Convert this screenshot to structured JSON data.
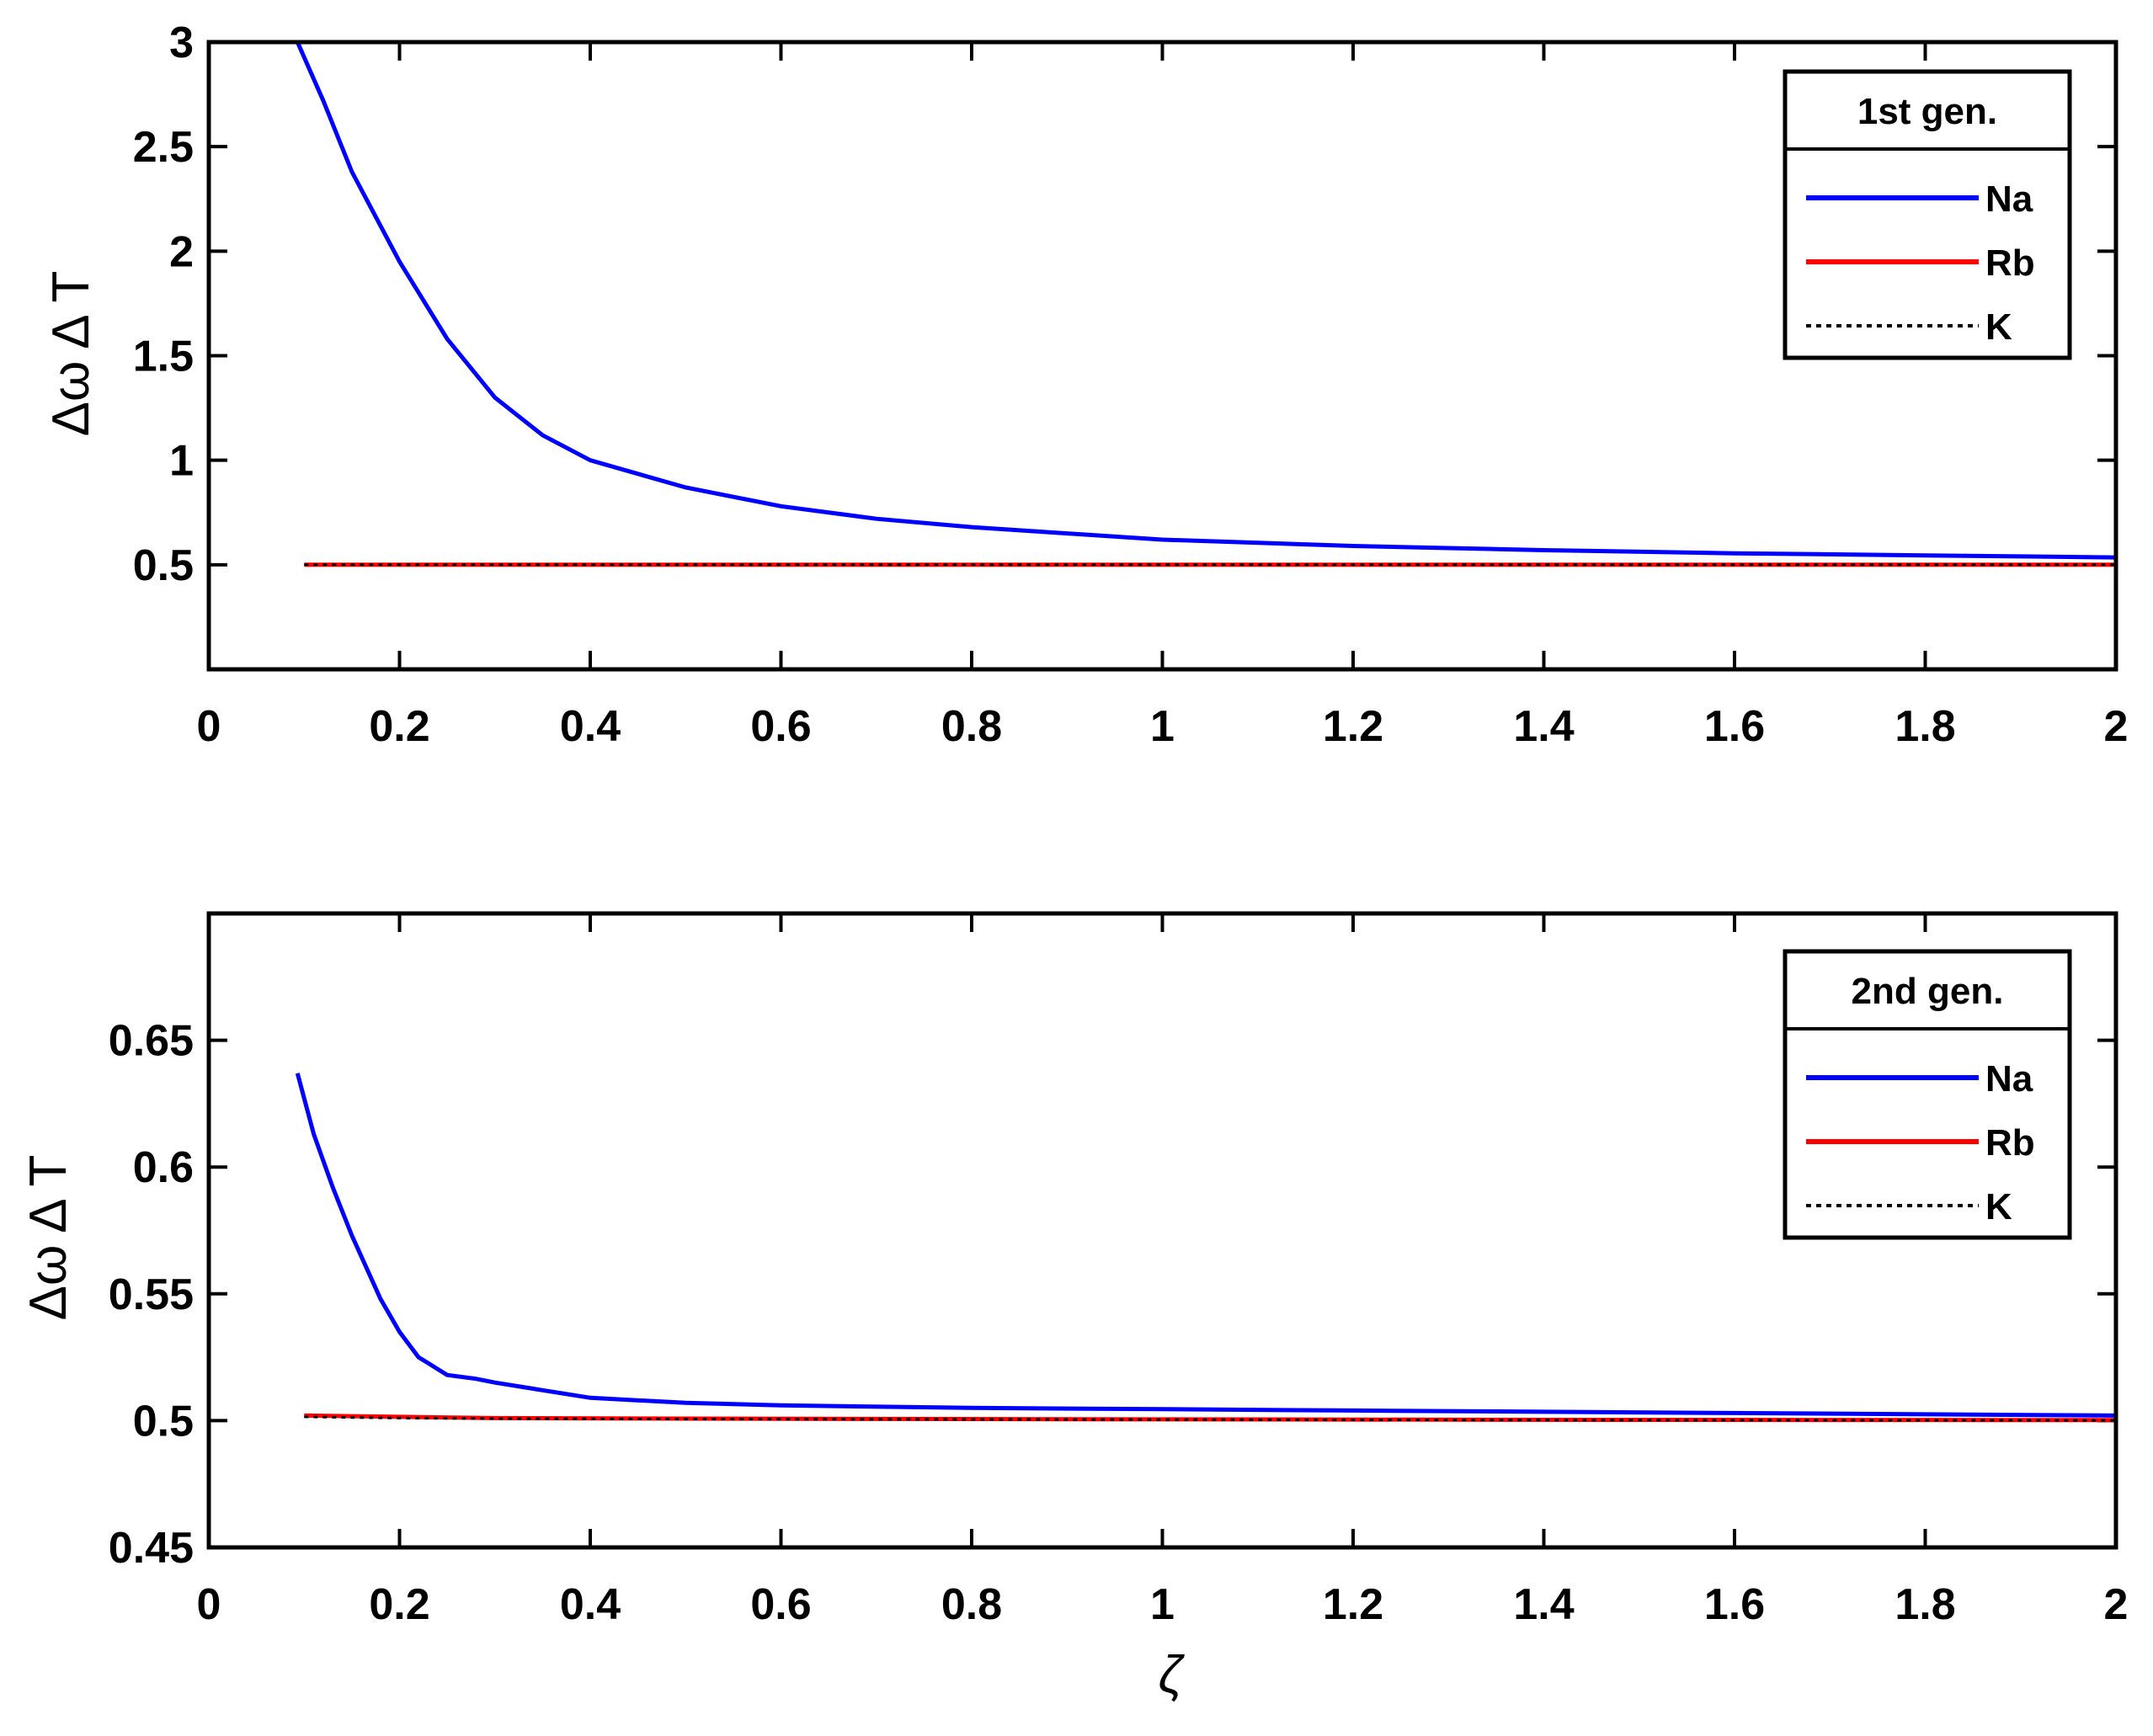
{
  "chart_data": [
    {
      "type": "line",
      "title": "",
      "xlabel": "",
      "ylabel": "Δω Δ T",
      "xlim": [
        0,
        2
      ],
      "ylim": [
        0,
        3
      ],
      "x_ticks": [
        0,
        0.2,
        0.4,
        0.6,
        0.8,
        1,
        1.2,
        1.4,
        1.6,
        1.8,
        2
      ],
      "x_tick_labels": [
        "0",
        "0.2",
        "0.4",
        "0.6",
        "0.8",
        "1",
        "1.2",
        "1.4",
        "1.6",
        "1.8",
        "2"
      ],
      "y_ticks": [
        0.5,
        1,
        1.5,
        2,
        2.5,
        3
      ],
      "y_tick_labels": [
        "0.5",
        "1",
        "1.5",
        "2",
        "2.5",
        "3"
      ],
      "legend": {
        "title": "1st gen.",
        "position": "top-right"
      },
      "series": [
        {
          "name": "Na",
          "color": "#0000ff",
          "style": "solid",
          "x": [
            0.093,
            0.12,
            0.15,
            0.2,
            0.25,
            0.3,
            0.35,
            0.4,
            0.5,
            0.6,
            0.7,
            0.8,
            0.9,
            1.0,
            1.2,
            1.4,
            1.6,
            1.8,
            2.0
          ],
          "y": [
            3.0,
            2.72,
            2.38,
            1.95,
            1.58,
            1.3,
            1.12,
            1.0,
            0.87,
            0.78,
            0.72,
            0.68,
            0.65,
            0.62,
            0.59,
            0.57,
            0.555,
            0.545,
            0.535
          ]
        },
        {
          "name": "Rb",
          "color": "#ff0000",
          "style": "solid",
          "x": [
            0.1,
            2.0
          ],
          "y": [
            0.5,
            0.5
          ]
        },
        {
          "name": "K",
          "color": "#000000",
          "style": "dotted",
          "x": [
            0.1,
            2.0
          ],
          "y": [
            0.5,
            0.5
          ]
        }
      ]
    },
    {
      "type": "line",
      "title": "",
      "xlabel": "ζ",
      "ylabel": "Δω Δ T",
      "xlim": [
        0,
        2
      ],
      "ylim": [
        0.45,
        0.7
      ],
      "x_ticks": [
        0,
        0.2,
        0.4,
        0.6,
        0.8,
        1,
        1.2,
        1.4,
        1.6,
        1.8,
        2
      ],
      "x_tick_labels": [
        "0",
        "0.2",
        "0.4",
        "0.6",
        "0.8",
        "1",
        "1.2",
        "1.4",
        "1.6",
        "1.8",
        "2"
      ],
      "y_ticks": [
        0.45,
        0.5,
        0.55,
        0.6,
        0.65
      ],
      "y_tick_labels": [
        "0.45",
        "0.5",
        "0.55",
        "0.6",
        "0.65"
      ],
      "legend": {
        "title": "2nd gen.",
        "position": "top-right"
      },
      "series": [
        {
          "name": "Na",
          "color": "#0000ff",
          "style": "solid",
          "x": [
            0.093,
            0.11,
            0.13,
            0.15,
            0.18,
            0.2,
            0.22,
            0.25,
            0.28,
            0.3,
            0.35,
            0.4,
            0.5,
            0.6,
            0.8,
            1.0,
            1.2,
            1.4,
            1.6,
            1.8,
            2.0
          ],
          "y": [
            0.637,
            0.613,
            0.592,
            0.573,
            0.548,
            0.535,
            0.525,
            0.518,
            0.5165,
            0.515,
            0.512,
            0.509,
            0.507,
            0.506,
            0.505,
            0.5045,
            0.504,
            0.5035,
            0.503,
            0.5025,
            0.502
          ]
        },
        {
          "name": "Rb",
          "color": "#ff0000",
          "style": "solid",
          "x": [
            0.1,
            0.2,
            0.3,
            0.5,
            1.0,
            1.5,
            2.0
          ],
          "y": [
            0.502,
            0.5015,
            0.501,
            0.5008,
            0.5005,
            0.5003,
            0.5002
          ]
        },
        {
          "name": "K",
          "color": "#000000",
          "style": "dotted",
          "x": [
            0.1,
            0.2,
            0.3,
            0.5,
            1.0,
            1.5,
            2.0
          ],
          "y": [
            0.5015,
            0.501,
            0.5008,
            0.5006,
            0.5004,
            0.5002,
            0.5001
          ]
        }
      ]
    }
  ]
}
